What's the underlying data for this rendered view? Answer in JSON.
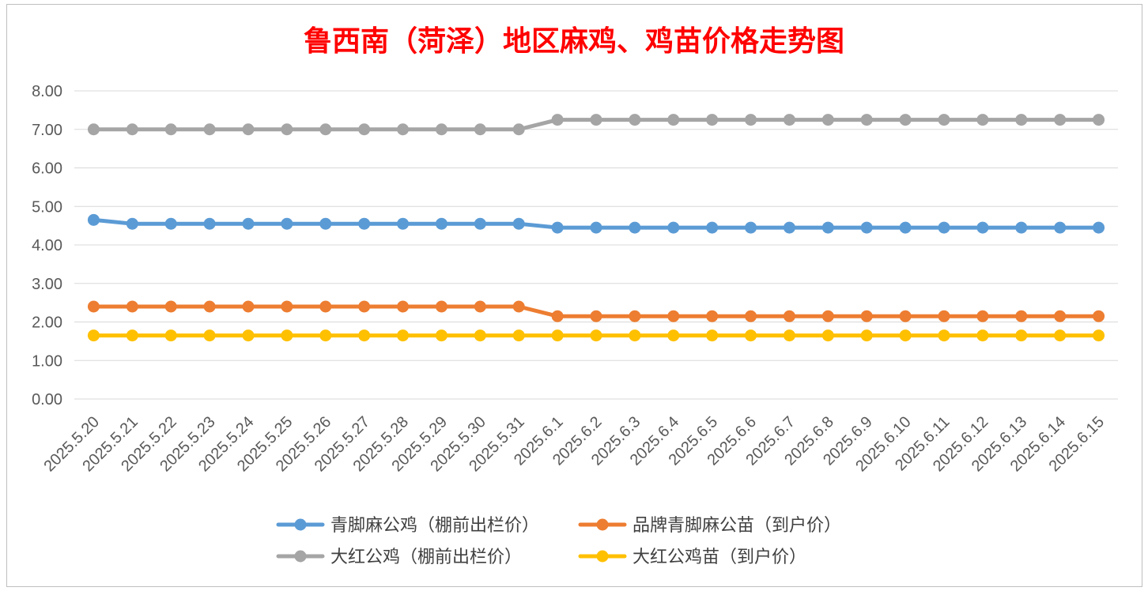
{
  "chart_data": {
    "type": "line",
    "title": "鲁西南（菏泽）地区麻鸡、鸡苗价格走势图",
    "xlabel": "",
    "ylabel": "",
    "ylim": [
      0,
      8
    ],
    "yticks": [
      "0.00",
      "1.00",
      "2.00",
      "3.00",
      "4.00",
      "5.00",
      "6.00",
      "7.00",
      "8.00"
    ],
    "grid": true,
    "legend_position": "bottom",
    "categories": [
      "2025.5.20",
      "2025.5.21",
      "2025.5.22",
      "2025.5.23",
      "2025.5.24",
      "2025.5.25",
      "2025.5.26",
      "2025.5.27",
      "2025.5.28",
      "2025.5.29",
      "2025.5.30",
      "2025.5.31",
      "2025.6.1",
      "2025.6.2",
      "2025.6.3",
      "2025.6.4",
      "2025.6.5",
      "2025.6.6",
      "2025.6.7",
      "2025.6.8",
      "2025.6.9",
      "2025.6.10",
      "2025.6.11",
      "2025.6.12",
      "2025.6.13",
      "2025.6.14",
      "2025.6.15"
    ],
    "series": [
      {
        "name": "青脚麻公鸡（棚前出栏价）",
        "color": "#5B9BD5",
        "values": [
          4.65,
          4.55,
          4.55,
          4.55,
          4.55,
          4.55,
          4.55,
          4.55,
          4.55,
          4.55,
          4.55,
          4.55,
          4.45,
          4.45,
          4.45,
          4.45,
          4.45,
          4.45,
          4.45,
          4.45,
          4.45,
          4.45,
          4.45,
          4.45,
          4.45,
          4.45,
          4.45
        ]
      },
      {
        "name": "品牌青脚麻公苗（到户价）",
        "color": "#ED7D31",
        "values": [
          2.4,
          2.4,
          2.4,
          2.4,
          2.4,
          2.4,
          2.4,
          2.4,
          2.4,
          2.4,
          2.4,
          2.4,
          2.15,
          2.15,
          2.15,
          2.15,
          2.15,
          2.15,
          2.15,
          2.15,
          2.15,
          2.15,
          2.15,
          2.15,
          2.15,
          2.15,
          2.15
        ]
      },
      {
        "name": "大红公鸡（棚前出栏价）",
        "color": "#A5A5A5",
        "values": [
          7.0,
          7.0,
          7.0,
          7.0,
          7.0,
          7.0,
          7.0,
          7.0,
          7.0,
          7.0,
          7.0,
          7.0,
          7.25,
          7.25,
          7.25,
          7.25,
          7.25,
          7.25,
          7.25,
          7.25,
          7.25,
          7.25,
          7.25,
          7.25,
          7.25,
          7.25,
          7.25
        ]
      },
      {
        "name": "大红公鸡苗（到户价）",
        "color": "#FFC000",
        "values": [
          1.65,
          1.65,
          1.65,
          1.65,
          1.65,
          1.65,
          1.65,
          1.65,
          1.65,
          1.65,
          1.65,
          1.65,
          1.65,
          1.65,
          1.65,
          1.65,
          1.65,
          1.65,
          1.65,
          1.65,
          1.65,
          1.65,
          1.65,
          1.65,
          1.65,
          1.65,
          1.65
        ]
      }
    ],
    "colors": {
      "title": "#FF0000",
      "grid": "#D9D9D9",
      "tick_text": "#595959",
      "legend_text": "#404040",
      "frame_border": "#BFBFBF"
    }
  }
}
